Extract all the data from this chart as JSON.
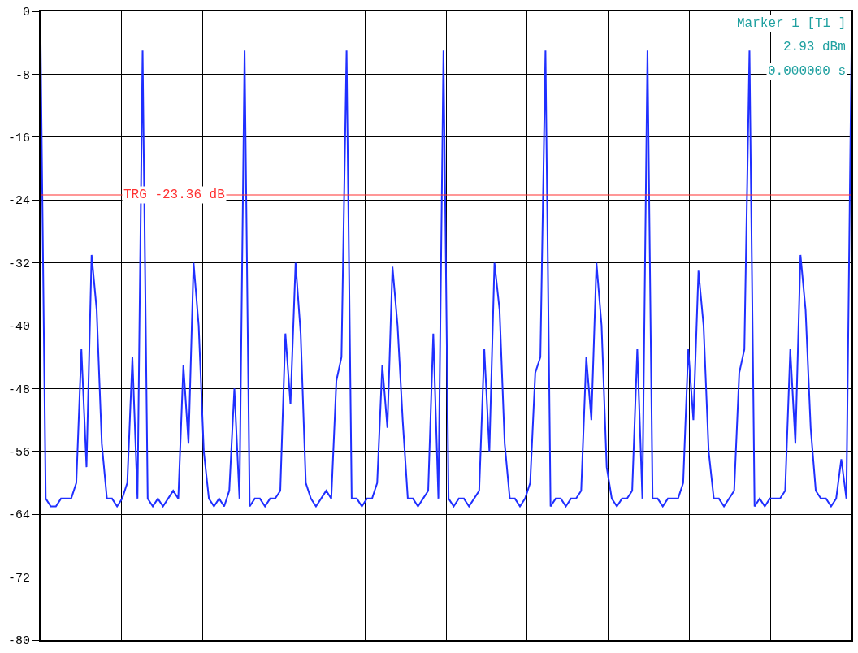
{
  "chart_data": {
    "type": "line",
    "categories": [
      null,
      null,
      null,
      null,
      null,
      null,
      null,
      null,
      null,
      null,
      null,
      null,
      null,
      null,
      null,
      null,
      null,
      null,
      null,
      null,
      null,
      null,
      null,
      null,
      null,
      null,
      null,
      null,
      null,
      null,
      null,
      null,
      null,
      null,
      null,
      null,
      null,
      null,
      null,
      null,
      null,
      null,
      null,
      null,
      null,
      null,
      null,
      null,
      null,
      null,
      null,
      null,
      null,
      null,
      null,
      null,
      null,
      null,
      null,
      null,
      null,
      null,
      null,
      null,
      null,
      null,
      null,
      null,
      null,
      null,
      null,
      null,
      null,
      null,
      null,
      null,
      null,
      null,
      null,
      null,
      null,
      null,
      null,
      null,
      null,
      null,
      null,
      null,
      null,
      null,
      null,
      null,
      null,
      null,
      null,
      null,
      null,
      null,
      null,
      null,
      null,
      null,
      null,
      null,
      null,
      null,
      null,
      null,
      null,
      null,
      null,
      null,
      null,
      null,
      null,
      null,
      null,
      null,
      null,
      null,
      null,
      null,
      null,
      null,
      null,
      null,
      null,
      null,
      null,
      null,
      null,
      null,
      null,
      null,
      null,
      null,
      null,
      null,
      null,
      null,
      null,
      null,
      null,
      null,
      null,
      null,
      null,
      null,
      null,
      null,
      null,
      null,
      null,
      null,
      null,
      null,
      null,
      null,
      null,
      null
    ],
    "series": [
      {
        "color": "#1f2fff",
        "values": [
          -4,
          -62,
          -63,
          -63,
          -62,
          -62,
          -62,
          -60,
          -43,
          -58,
          -31,
          -38,
          -55,
          -62,
          -62,
          -63,
          -62,
          -60,
          -44,
          -62,
          -5,
          -62,
          -63,
          -62,
          -63,
          -62,
          -61,
          -62,
          -45,
          -55,
          -32,
          -40,
          -56,
          -62,
          -63,
          -62,
          -63,
          -61,
          -48,
          -62,
          -5,
          -63,
          -62,
          -62,
          -63,
          -62,
          -62,
          -61,
          -41,
          -50,
          -32,
          -41,
          -60,
          -62,
          -63,
          -62,
          -61,
          -62,
          -47,
          -44,
          -5,
          -62,
          -62,
          -63,
          -62,
          -62,
          -60,
          -45,
          -53,
          -32.5,
          -40,
          -52,
          -62,
          -62,
          -63,
          -62,
          -61,
          -41,
          -62,
          -5,
          -62,
          -63,
          -62,
          -62,
          -63,
          -62,
          -61,
          -43,
          -56,
          -32,
          -38,
          -55,
          -62,
          -62,
          -63,
          -62,
          -60,
          -46,
          -44,
          -5,
          -63,
          -62,
          -62,
          -63,
          -62,
          -62,
          -61,
          -44,
          -52,
          -32,
          -40,
          -58,
          -62,
          -63,
          -62,
          -62,
          -61,
          -43,
          -62,
          -5,
          -62,
          -62,
          -63,
          -62,
          -62,
          -62,
          -60,
          -43,
          -52,
          -33,
          -40,
          -56,
          -62,
          -62,
          -63,
          -62,
          -61,
          -46,
          -43,
          -5,
          -63,
          -62,
          -63,
          -62,
          -62,
          -62,
          -61,
          -43,
          -55,
          -31,
          -38,
          -53,
          -61,
          -62,
          -62,
          -63,
          -62,
          -57,
          -62,
          -5
        ]
      }
    ],
    "ylim": [
      -80,
      0
    ],
    "yticks": [
      0,
      -8,
      -16,
      -24,
      -32,
      -40,
      -48,
      -56,
      -64,
      -72,
      -80
    ],
    "grid": true,
    "tick_labels": "y",
    "ref_lines": [
      {
        "axis": "y",
        "value": -23.36,
        "label": "TRG -23.36 dB",
        "color": "#ff3030"
      }
    ],
    "annotations": [
      "Marker 1 [T1 ]",
      "2.93 dBm",
      "0.000000 s"
    ]
  }
}
